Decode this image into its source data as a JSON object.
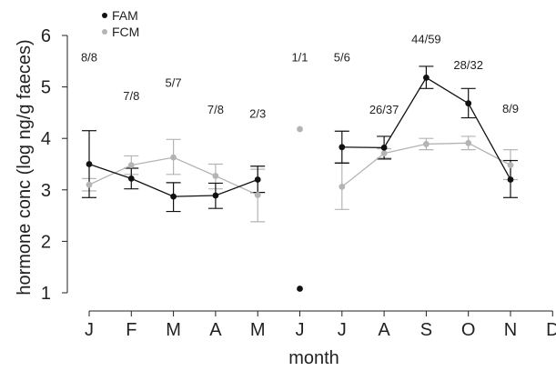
{
  "chart_data": {
    "type": "line",
    "xlabel": "month",
    "ylabel": "hormone conc (log ng/g faeces)",
    "categories": [
      "J",
      "F",
      "M",
      "A",
      "M",
      "J",
      "J",
      "A",
      "S",
      "O",
      "N",
      "D"
    ],
    "ylim": [
      1,
      6
    ],
    "yticks": [
      1,
      2,
      3,
      4,
      5,
      6
    ],
    "grid": false,
    "legend_position": "top-left",
    "series": [
      {
        "name": "FAM",
        "color": "#111111",
        "values": [
          3.5,
          3.22,
          2.87,
          2.89,
          3.2,
          1.08,
          3.83,
          3.82,
          5.18,
          4.68,
          3.2,
          null
        ],
        "err_low": [
          2.85,
          3.02,
          2.58,
          2.64,
          2.95,
          null,
          3.52,
          3.6,
          4.97,
          4.4,
          2.85,
          null
        ],
        "err_high": [
          4.15,
          3.42,
          3.14,
          3.13,
          3.46,
          null,
          4.14,
          4.04,
          5.4,
          4.97,
          3.57,
          null
        ],
        "connected": [
          true,
          true,
          true,
          true,
          true,
          false,
          true,
          true,
          true,
          true,
          true,
          false
        ]
      },
      {
        "name": "FCM",
        "color": "#b4b4b4",
        "values": [
          3.1,
          3.48,
          3.63,
          3.27,
          2.9,
          4.18,
          3.06,
          3.71,
          3.89,
          3.91,
          3.48,
          null
        ],
        "err_low": [
          2.98,
          3.3,
          3.3,
          3.02,
          2.38,
          null,
          2.62,
          3.62,
          3.78,
          3.78,
          3.2,
          null
        ],
        "err_high": [
          3.22,
          3.66,
          3.98,
          3.5,
          3.4,
          null,
          3.53,
          3.8,
          4.0,
          4.04,
          3.78,
          null
        ],
        "connected": [
          true,
          true,
          true,
          true,
          true,
          false,
          true,
          true,
          true,
          true,
          true,
          false
        ]
      }
    ],
    "annotations": [
      {
        "month_index": 0,
        "text": "8/8",
        "y": 5.5
      },
      {
        "month_index": 1,
        "text": "7/8",
        "y": 4.75
      },
      {
        "month_index": 2,
        "text": "5/7",
        "y": 5.0
      },
      {
        "month_index": 3,
        "text": "7/8",
        "y": 4.48
      },
      {
        "month_index": 4,
        "text": "2/3",
        "y": 4.4
      },
      {
        "month_index": 5,
        "text": "1/1",
        "y": 5.5
      },
      {
        "month_index": 6,
        "text": "5/6",
        "y": 5.5
      },
      {
        "month_index": 7,
        "text": "26/37",
        "y": 4.48
      },
      {
        "month_index": 8,
        "text": "44/59",
        "y": 5.85
      },
      {
        "month_index": 9,
        "text": "28/32",
        "y": 5.35
      },
      {
        "month_index": 10,
        "text": "8/9",
        "y": 4.5
      }
    ]
  }
}
